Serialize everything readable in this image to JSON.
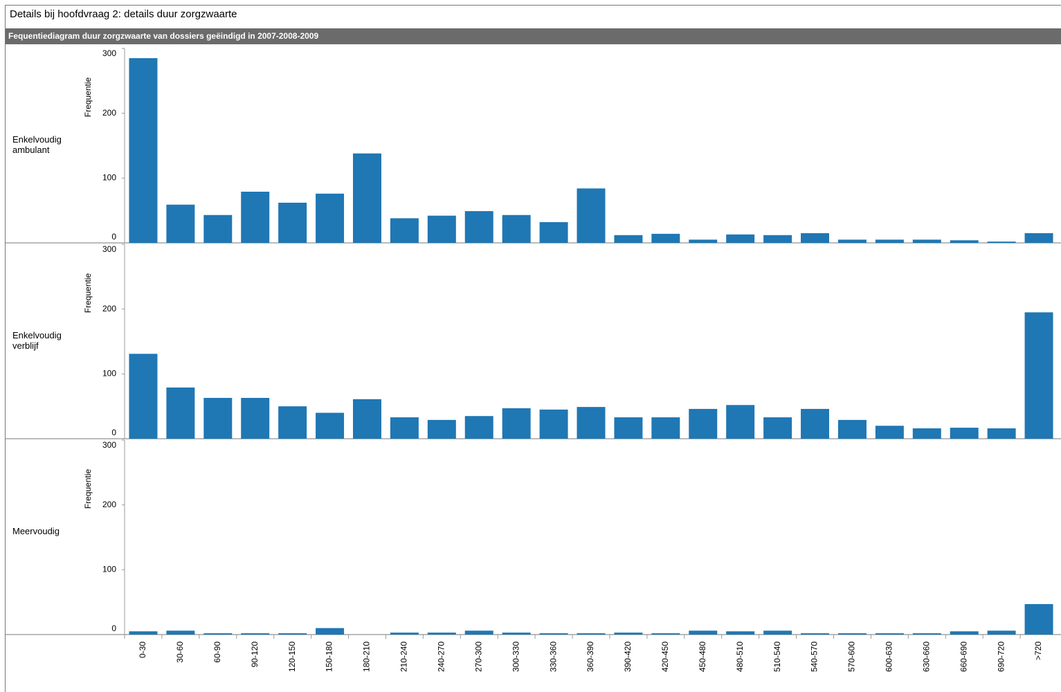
{
  "header": {
    "title": "Details bij hoofdvraag 2: details duur zorgzwaarte"
  },
  "chart_data": {
    "type": "bar",
    "title": "Fequentiediagram duur zorgzwaarte van dossiers geëindigd in 2007-2008-2009",
    "ylabel": "Frequentie",
    "categories": [
      "0-30",
      "30-60",
      "60-90",
      "90-120",
      "120-150",
      "150-180",
      "180-210",
      "210-240",
      "240-270",
      "270-300",
      "300-330",
      "330-360",
      "360-390",
      "390-420",
      "420-450",
      "450-480",
      "480-510",
      "510-540",
      "540-570",
      "570-600",
      "600-630",
      "630-660",
      "660-690",
      "690-720",
      ">720"
    ],
    "series": [
      {
        "name": "Enkelvoudig ambulant",
        "color": "#1f77b4",
        "values": [
          285,
          59,
          43,
          79,
          62,
          76,
          138,
          38,
          42,
          49,
          43,
          32,
          84,
          12,
          14,
          5,
          13,
          12,
          15,
          5,
          5,
          5,
          4,
          2,
          15
        ]
      },
      {
        "name": "Enkelvoudig verblijf",
        "color": "#1f77b4",
        "values": [
          131,
          79,
          63,
          63,
          50,
          40,
          61,
          33,
          29,
          35,
          47,
          45,
          49,
          33,
          33,
          46,
          52,
          33,
          46,
          29,
          20,
          16,
          17,
          16,
          195
        ]
      },
      {
        "name": "Meervoudig",
        "color": "#1f77b4",
        "values": [
          5,
          6,
          2,
          2,
          2,
          10,
          0,
          3,
          3,
          6,
          3,
          2,
          2,
          3,
          2,
          6,
          5,
          6,
          2,
          2,
          2,
          2,
          5,
          6,
          47
        ]
      }
    ],
    "ylim": [
      0,
      300
    ],
    "yticks": [
      0,
      100,
      200,
      300
    ],
    "grid": false
  }
}
